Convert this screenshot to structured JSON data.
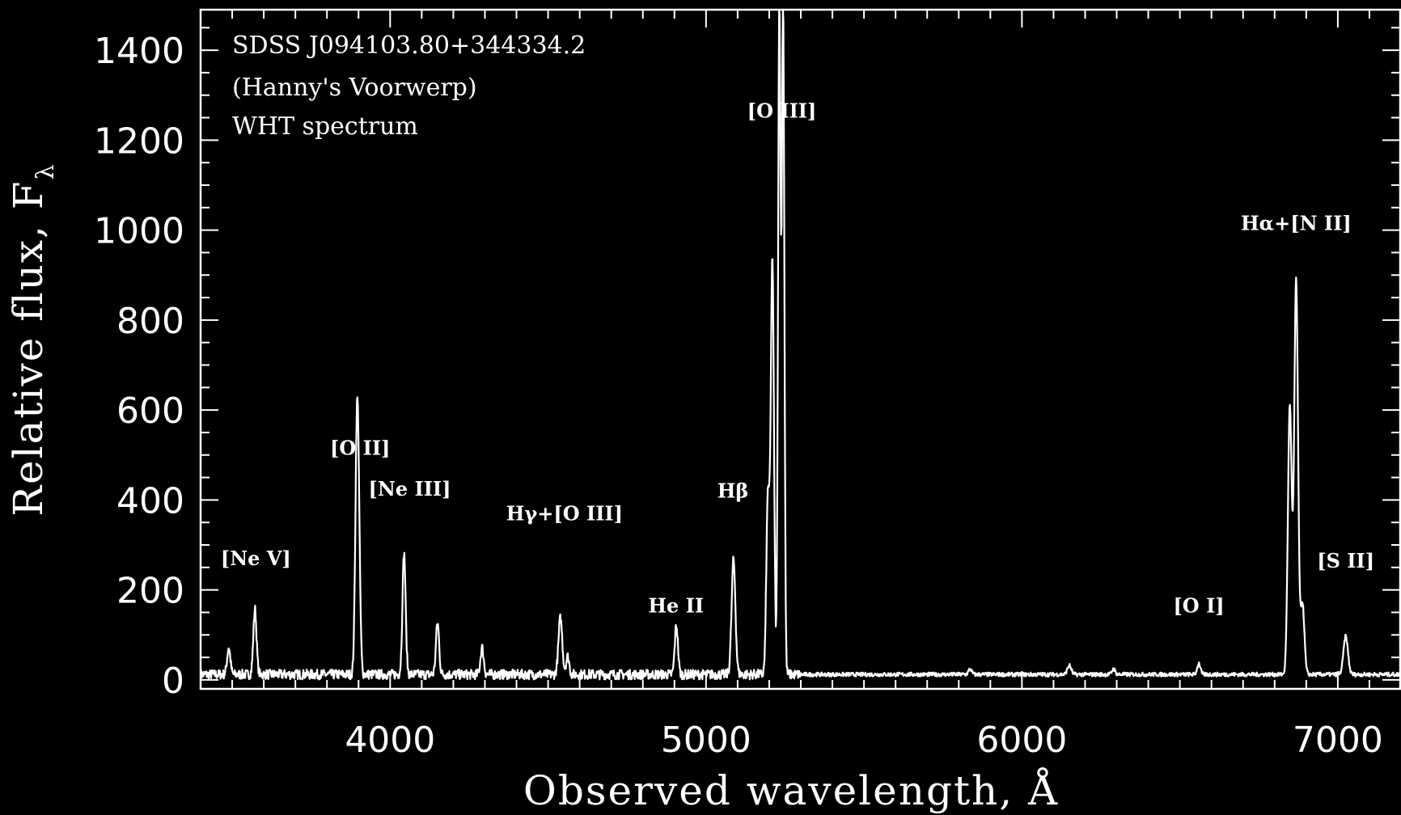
{
  "chart_data": {
    "type": "line",
    "title": "",
    "annotations": [
      "SDSS J094103.80+344334.2",
      "(Hanny's Voorwerp)",
      "WHT spectrum"
    ],
    "xlabel": "Observed wavelength, Å",
    "ylabel_main": "Relative flux, F",
    "ylabel_sub": "λ",
    "xlim": [
      3400,
      7200
    ],
    "ylim": [
      -20,
      1490
    ],
    "xticks": [
      4000,
      5000,
      6000,
      7000
    ],
    "yticks": [
      0,
      200,
      400,
      600,
      800,
      1000,
      1200,
      1400
    ],
    "x_minor_step": 100,
    "y_minor_step": 50,
    "grid": false,
    "continuum": 12,
    "emission_lines": [
      {
        "x": 3489,
        "peak": 60,
        "width": 5
      },
      {
        "x": 3572,
        "peak": 145,
        "width": 5
      },
      {
        "x": 3894,
        "peak": 430,
        "width": 5
      },
      {
        "x": 3900,
        "peak": 300,
        "width": 5
      },
      {
        "x": 4044,
        "peak": 270,
        "width": 5
      },
      {
        "x": 4150,
        "peak": 115,
        "width": 5
      },
      {
        "x": 4291,
        "peak": 60,
        "width": 5
      },
      {
        "x": 4539,
        "peak": 125,
        "width": 6
      },
      {
        "x": 4562,
        "peak": 40,
        "width": 5
      },
      {
        "x": 4906,
        "peak": 110,
        "width": 5
      },
      {
        "x": 5087,
        "peak": 255,
        "width": 6
      },
      {
        "x": 5196,
        "peak": 400,
        "width": 5
      },
      {
        "x": 5210,
        "peak": 925,
        "width": 5
      },
      {
        "x": 5232,
        "peak": 1490,
        "width": 4
      },
      {
        "x": 5244,
        "peak": 1490,
        "width": 4
      },
      {
        "x": 5836,
        "peak": 12,
        "width": 5
      },
      {
        "x": 6150,
        "peak": 20,
        "width": 6
      },
      {
        "x": 6290,
        "peak": 12,
        "width": 5
      },
      {
        "x": 6560,
        "peak": 25,
        "width": 5
      },
      {
        "x": 6848,
        "peak": 600,
        "width": 6
      },
      {
        "x": 6868,
        "peak": 880,
        "width": 6
      },
      {
        "x": 6888,
        "peak": 160,
        "width": 6
      },
      {
        "x": 7025,
        "peak": 85,
        "width": 7
      }
    ],
    "line_labels": [
      {
        "text": "[Ne V]",
        "x": 3575,
        "y": 255
      },
      {
        "text": "[O II]",
        "x": 3905,
        "y": 500
      },
      {
        "text": "[Ne III]",
        "x": 4062,
        "y": 410
      },
      {
        "text": "Hγ+[O III]",
        "x": 4552,
        "y": 355
      },
      {
        "text": "He II",
        "x": 4905,
        "y": 150
      },
      {
        "text": "Hβ",
        "x": 5085,
        "y": 405
      },
      {
        "text": "[O III]",
        "x": 5240,
        "y": 1250
      },
      {
        "text": "[O I]",
        "x": 6560,
        "y": 150
      },
      {
        "text": "Hα+[N II]",
        "x": 6868,
        "y": 1000
      },
      {
        "text": "[S II]",
        "x": 7025,
        "y": 250
      }
    ]
  }
}
